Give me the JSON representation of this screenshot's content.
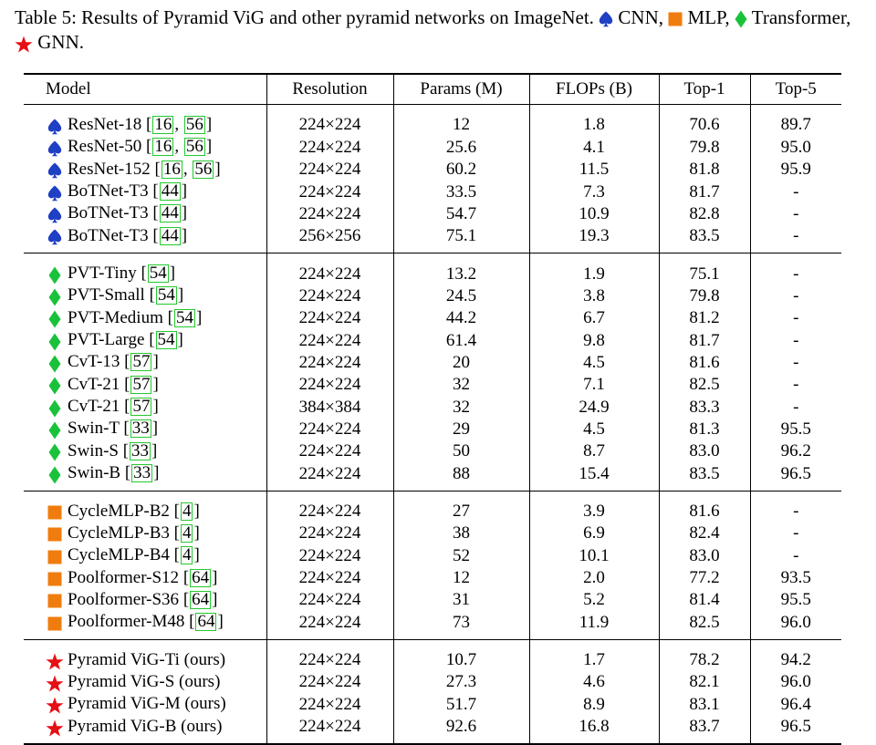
{
  "caption": {
    "text": "Table 5: Results of Pyramid ViG and other pyramid networks on ImageNet.",
    "legend": [
      {
        "icon": "spade-icon",
        "label": "CNN,"
      },
      {
        "icon": "square-icon",
        "label": "MLP,"
      },
      {
        "icon": "diamond-icon",
        "label": "Transformer,"
      },
      {
        "icon": "star-icon",
        "label": "GNN."
      }
    ]
  },
  "colors": {
    "cnn": "#1f3fc4",
    "mlp": "#f07c0e",
    "transformer": "#19c23a",
    "gnn": "#e60f14",
    "citation_box": "#24c82e"
  },
  "table": {
    "headers": [
      "Model",
      "Resolution",
      "Params (M)",
      "FLOPs (B)",
      "Top-1",
      "Top-5"
    ],
    "groups": [
      {
        "icon": "spade-icon",
        "rows": [
          {
            "model": "ResNet-18",
            "refs": [
              "16",
              "56"
            ],
            "resolution": "224×224",
            "params": "12",
            "flops": "1.8",
            "top1": "70.6",
            "top5": "89.7"
          },
          {
            "model": "ResNet-50",
            "refs": [
              "16",
              "56"
            ],
            "resolution": "224×224",
            "params": "25.6",
            "flops": "4.1",
            "top1": "79.8",
            "top5": "95.0"
          },
          {
            "model": "ResNet-152",
            "refs": [
              "16",
              "56"
            ],
            "resolution": "224×224",
            "params": "60.2",
            "flops": "11.5",
            "top1": "81.8",
            "top5": "95.9"
          },
          {
            "model": "BoTNet-T3",
            "refs": [
              "44"
            ],
            "resolution": "224×224",
            "params": "33.5",
            "flops": "7.3",
            "top1": "81.7",
            "top5": "-"
          },
          {
            "model": "BoTNet-T3",
            "refs": [
              "44"
            ],
            "resolution": "224×224",
            "params": "54.7",
            "flops": "10.9",
            "top1": "82.8",
            "top5": "-"
          },
          {
            "model": "BoTNet-T3",
            "refs": [
              "44"
            ],
            "resolution": "256×256",
            "params": "75.1",
            "flops": "19.3",
            "top1": "83.5",
            "top5": "-"
          }
        ]
      },
      {
        "icon": "diamond-icon",
        "rows": [
          {
            "model": "PVT-Tiny",
            "refs": [
              "54"
            ],
            "resolution": "224×224",
            "params": "13.2",
            "flops": "1.9",
            "top1": "75.1",
            "top5": "-"
          },
          {
            "model": "PVT-Small",
            "refs": [
              "54"
            ],
            "resolution": "224×224",
            "params": "24.5",
            "flops": "3.8",
            "top1": "79.8",
            "top5": "-"
          },
          {
            "model": "PVT-Medium",
            "refs": [
              "54"
            ],
            "resolution": "224×224",
            "params": "44.2",
            "flops": "6.7",
            "top1": "81.2",
            "top5": "-"
          },
          {
            "model": "PVT-Large",
            "refs": [
              "54"
            ],
            "resolution": "224×224",
            "params": "61.4",
            "flops": "9.8",
            "top1": "81.7",
            "top5": "-"
          },
          {
            "model": "CvT-13",
            "refs": [
              "57"
            ],
            "resolution": "224×224",
            "params": "20",
            "flops": "4.5",
            "top1": "81.6",
            "top5": "-"
          },
          {
            "model": "CvT-21",
            "refs": [
              "57"
            ],
            "resolution": "224×224",
            "params": "32",
            "flops": "7.1",
            "top1": "82.5",
            "top5": "-"
          },
          {
            "model": "CvT-21",
            "refs": [
              "57"
            ],
            "resolution": "384×384",
            "params": "32",
            "flops": "24.9",
            "top1": "83.3",
            "top5": "-"
          },
          {
            "model": "Swin-T",
            "refs": [
              "33"
            ],
            "resolution": "224×224",
            "params": "29",
            "flops": "4.5",
            "top1": "81.3",
            "top5": "95.5"
          },
          {
            "model": "Swin-S",
            "refs": [
              "33"
            ],
            "resolution": "224×224",
            "params": "50",
            "flops": "8.7",
            "top1": "83.0",
            "top5": "96.2"
          },
          {
            "model": "Swin-B",
            "refs": [
              "33"
            ],
            "resolution": "224×224",
            "params": "88",
            "flops": "15.4",
            "top1": "83.5",
            "top5": "96.5"
          }
        ]
      },
      {
        "icon": "square-icon",
        "rows": [
          {
            "model": "CycleMLP-B2",
            "refs": [
              "4"
            ],
            "resolution": "224×224",
            "params": "27",
            "flops": "3.9",
            "top1": "81.6",
            "top5": "-"
          },
          {
            "model": "CycleMLP-B3",
            "refs": [
              "4"
            ],
            "resolution": "224×224",
            "params": "38",
            "flops": "6.9",
            "top1": "82.4",
            "top5": "-"
          },
          {
            "model": "CycleMLP-B4",
            "refs": [
              "4"
            ],
            "resolution": "224×224",
            "params": "52",
            "flops": "10.1",
            "top1": "83.0",
            "top5": "-"
          },
          {
            "model": "Poolformer-S12",
            "refs": [
              "64"
            ],
            "resolution": "224×224",
            "params": "12",
            "flops": "2.0",
            "top1": "77.2",
            "top5": "93.5"
          },
          {
            "model": "Poolformer-S36",
            "refs": [
              "64"
            ],
            "resolution": "224×224",
            "params": "31",
            "flops": "5.2",
            "top1": "81.4",
            "top5": "95.5"
          },
          {
            "model": "Poolformer-M48",
            "refs": [
              "64"
            ],
            "resolution": "224×224",
            "params": "73",
            "flops": "11.9",
            "top1": "82.5",
            "top5": "96.0"
          }
        ]
      },
      {
        "icon": "star-icon",
        "bold_scores": true,
        "rows": [
          {
            "model": "Pyramid ViG-Ti (ours)",
            "refs": [],
            "resolution": "224×224",
            "params": "10.7",
            "flops": "1.7",
            "top1": "78.2",
            "top5": "94.2"
          },
          {
            "model": "Pyramid ViG-S (ours)",
            "refs": [],
            "resolution": "224×224",
            "params": "27.3",
            "flops": "4.6",
            "top1": "82.1",
            "top5": "96.0"
          },
          {
            "model": "Pyramid ViG-M (ours)",
            "refs": [],
            "resolution": "224×224",
            "params": "51.7",
            "flops": "8.9",
            "top1": "83.1",
            "top5": "96.4"
          },
          {
            "model": "Pyramid ViG-B (ours)",
            "refs": [],
            "resolution": "224×224",
            "params": "92.6",
            "flops": "16.8",
            "top1": "83.7",
            "top5": "96.5"
          }
        ]
      }
    ]
  }
}
